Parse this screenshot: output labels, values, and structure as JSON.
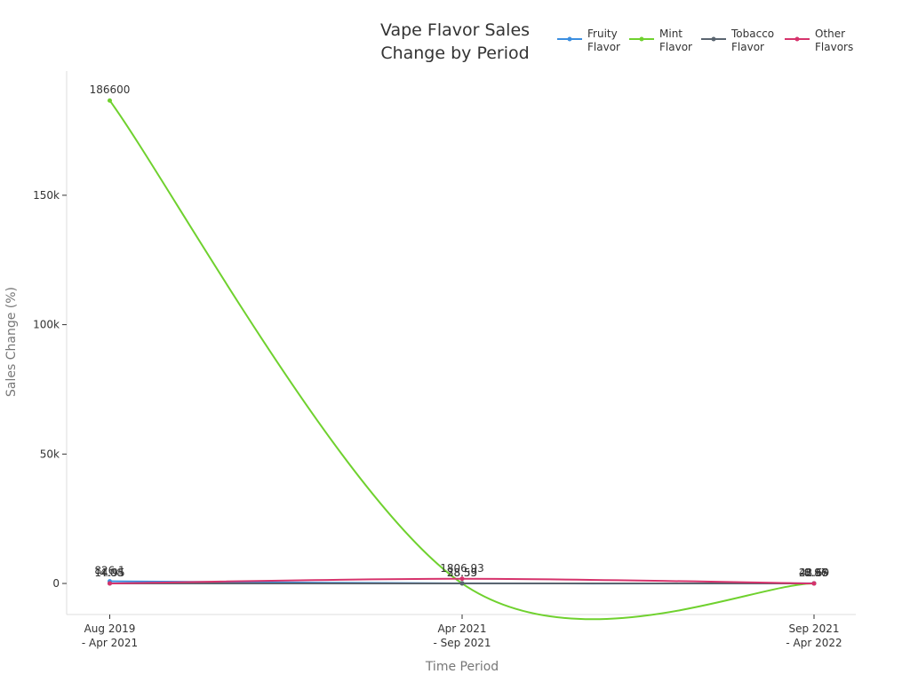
{
  "chart_data": {
    "type": "line",
    "title": [
      "Vape Flavor Sales",
      "Change by Period"
    ],
    "xlabel": "Time Period",
    "ylabel": "Sales Change (%)",
    "categories": [
      [
        "Aug 2019",
        "- Apr 2021"
      ],
      [
        "Apr 2021",
        "- Sep 2021"
      ],
      [
        "Sep 2021",
        "- Apr 2022"
      ]
    ],
    "ylim": [
      -12000,
      198000
    ],
    "yticks": [
      0,
      50000,
      100000,
      150000
    ],
    "ytick_labels": [
      "0",
      "50k",
      "100k",
      "150k"
    ],
    "grid": false,
    "legend_position": "top-right",
    "series": [
      {
        "name": [
          "Fruity",
          "Flavor"
        ],
        "color": "#3b8ee0",
        "values": [
          826.1,
          38.55,
          48.59
        ],
        "labels": [
          "826.1",
          "38.55",
          "48.59"
        ]
      },
      {
        "name": [
          "Mint",
          "Flavor"
        ],
        "color": "#6fd12e",
        "values": [
          186600,
          0,
          22.69
        ],
        "labels": [
          "186600",
          "",
          "22.69"
        ]
      },
      {
        "name": [
          "Tobacco",
          "Flavor"
        ],
        "color": "#5a6570",
        "values": [
          14.95,
          28.59,
          -0.96
        ],
        "labels": [
          "14.95",
          "28.59",
          "-0.96"
        ]
      },
      {
        "name": [
          "Other",
          "Flavors"
        ],
        "color": "#d6336c",
        "values": [
          -4.08,
          1806.93,
          -8.87
        ],
        "labels": [
          "-4.08",
          "1806.93",
          "-8.87"
        ]
      }
    ]
  }
}
